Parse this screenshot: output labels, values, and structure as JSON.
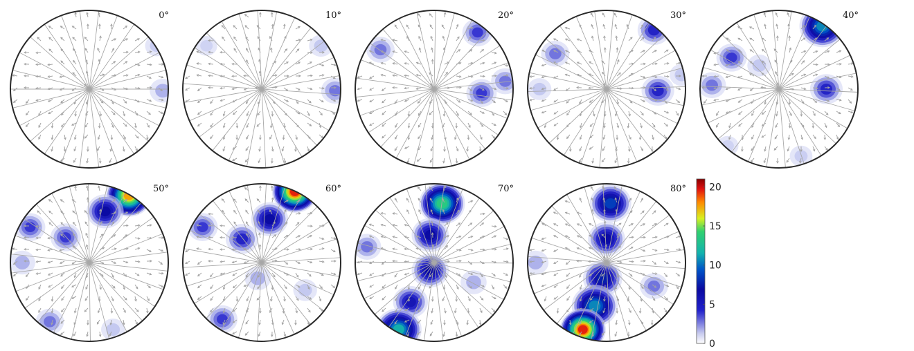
{
  "chart_data": {
    "type": "heatmap",
    "projection": "pole-figure",
    "panels": [
      {
        "label": "0°",
        "hotspots": [
          {
            "u": 0.93,
            "v": 0.02,
            "peak": 3
          },
          {
            "u": 0.85,
            "v": -0.55,
            "peak": 1.5
          }
        ]
      },
      {
        "label": "10°",
        "hotspots": [
          {
            "u": 0.93,
            "v": 0.02,
            "peak": 4
          },
          {
            "u": 0.75,
            "v": -0.55,
            "peak": 2
          },
          {
            "u": -0.7,
            "v": -0.55,
            "peak": 1
          }
        ]
      },
      {
        "label": "20°",
        "hotspots": [
          {
            "u": 0.55,
            "v": -0.72,
            "peak": 5
          },
          {
            "u": 0.6,
            "v": 0.05,
            "peak": 5
          },
          {
            "u": 0.9,
            "v": -0.1,
            "peak": 4
          },
          {
            "u": -0.68,
            "v": -0.5,
            "peak": 4
          }
        ]
      },
      {
        "label": "30°",
        "hotspots": [
          {
            "u": 0.6,
            "v": -0.75,
            "peak": 6
          },
          {
            "u": 0.65,
            "v": 0.02,
            "peak": 6
          },
          {
            "u": -0.65,
            "v": -0.45,
            "peak": 4
          },
          {
            "u": -0.85,
            "v": 0.0,
            "peak": 2
          },
          {
            "u": 0.95,
            "v": -0.18,
            "peak": 2
          }
        ]
      },
      {
        "label": "40°",
        "hotspots": [
          {
            "u": 0.55,
            "v": -0.8,
            "peak": 12
          },
          {
            "u": 0.6,
            "v": 0.0,
            "peak": 6
          },
          {
            "u": -0.6,
            "v": -0.4,
            "peak": 5
          },
          {
            "u": -0.85,
            "v": -0.05,
            "peak": 4
          },
          {
            "u": -0.25,
            "v": -0.3,
            "peak": 2
          },
          {
            "u": 0.28,
            "v": 0.85,
            "peak": 1.5
          },
          {
            "u": -0.65,
            "v": 0.72,
            "peak": 1
          }
        ]
      },
      {
        "label": "50°",
        "hotspots": [
          {
            "u": 0.5,
            "v": -0.85,
            "peak": 19
          },
          {
            "u": 0.2,
            "v": -0.65,
            "peak": 8
          },
          {
            "u": -0.3,
            "v": -0.32,
            "peak": 5
          },
          {
            "u": -0.75,
            "v": -0.45,
            "peak": 5
          },
          {
            "u": -0.85,
            "v": 0.0,
            "peak": 3
          },
          {
            "u": -0.5,
            "v": 0.75,
            "peak": 4
          },
          {
            "u": 0.3,
            "v": 0.85,
            "peak": 2
          }
        ]
      },
      {
        "label": "60°",
        "hotspots": [
          {
            "u": 0.42,
            "v": -0.9,
            "peak": 21
          },
          {
            "u": 0.1,
            "v": -0.55,
            "peak": 8
          },
          {
            "u": -0.25,
            "v": -0.3,
            "peak": 6
          },
          {
            "u": -0.75,
            "v": -0.45,
            "peak": 5
          },
          {
            "u": -0.05,
            "v": 0.2,
            "peak": 3
          },
          {
            "u": -0.5,
            "v": 0.72,
            "peak": 5
          },
          {
            "u": 0.55,
            "v": 0.35,
            "peak": 2
          }
        ]
      },
      {
        "label": "70°",
        "hotspots": [
          {
            "u": 0.1,
            "v": -0.75,
            "peak": 15
          },
          {
            "u": -0.05,
            "v": -0.35,
            "peak": 8
          },
          {
            "u": -0.05,
            "v": 0.1,
            "peak": 8
          },
          {
            "u": -0.3,
            "v": 0.5,
            "peak": 7
          },
          {
            "u": -0.45,
            "v": 0.85,
            "peak": 13
          },
          {
            "u": -0.85,
            "v": -0.2,
            "peak": 4
          },
          {
            "u": 0.5,
            "v": 0.25,
            "peak": 3
          }
        ]
      },
      {
        "label": "80°",
        "hotspots": [
          {
            "u": 0.05,
            "v": -0.75,
            "peak": 10
          },
          {
            "u": 0.0,
            "v": -0.3,
            "peak": 8
          },
          {
            "u": -0.05,
            "v": 0.2,
            "peak": 9
          },
          {
            "u": -0.15,
            "v": 0.55,
            "peak": 12
          },
          {
            "u": -0.3,
            "v": 0.85,
            "peak": 21
          },
          {
            "u": -0.9,
            "v": 0.0,
            "peak": 3
          },
          {
            "u": 0.6,
            "v": 0.3,
            "peak": 4
          }
        ]
      }
    ],
    "colorbar": {
      "min": 0,
      "max": 21,
      "ticks": [
        "0",
        "5",
        "10",
        "15",
        "20"
      ],
      "tick_values": [
        0,
        5,
        10,
        15,
        20
      ],
      "colormap": "jet-like (white to blue to cyan to yellow to red)"
    }
  }
}
